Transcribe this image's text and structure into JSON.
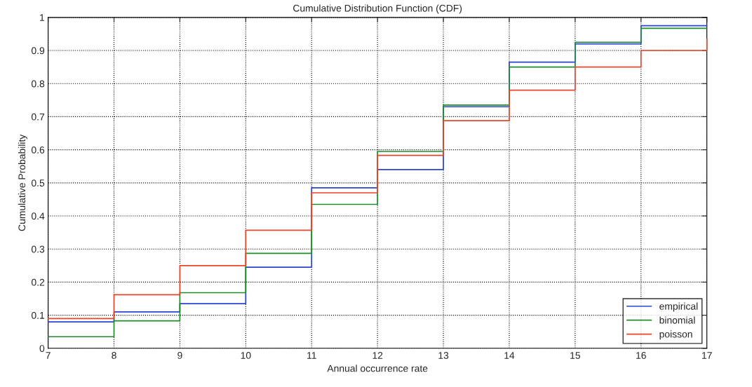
{
  "chart_data": {
    "type": "step",
    "title": "Cumulative Distribution Function (CDF)",
    "xlabel": "Annual occurrence rate",
    "ylabel": "Cumulative Probability",
    "x": [
      7,
      8,
      9,
      10,
      11,
      12,
      13,
      14,
      15,
      16,
      17
    ],
    "series": [
      {
        "name": "empirical",
        "color": "#2a45d0",
        "values": [
          0.08,
          0.11,
          0.135,
          0.245,
          0.485,
          0.54,
          0.73,
          0.865,
          0.92,
          0.975,
          0.975
        ]
      },
      {
        "name": "binomial",
        "color": "#1e8c2a",
        "values": [
          0.035,
          0.083,
          0.168,
          0.287,
          0.435,
          0.595,
          0.735,
          0.85,
          0.925,
          0.967,
          0.967
        ]
      },
      {
        "name": "poisson",
        "color": "#e8452a",
        "values": [
          0.09,
          0.162,
          0.25,
          0.357,
          0.47,
          0.583,
          0.688,
          0.78,
          0.85,
          0.9,
          0.935
        ]
      }
    ],
    "xlim": [
      7,
      17
    ],
    "ylim": [
      0,
      1
    ],
    "xticks": [
      7,
      8,
      9,
      10,
      11,
      12,
      13,
      14,
      15,
      16,
      17
    ],
    "yticks": [
      0,
      {
        "value": 0.1,
        "label": "0.1"
      },
      {
        "value": 0.2,
        "label": "0.2"
      },
      {
        "value": 0.3,
        "label": "0.3"
      },
      {
        "value": 0.4,
        "label": "0.4"
      },
      {
        "value": 0.5,
        "label": "0.5"
      },
      {
        "value": 0.6,
        "label": "0.6"
      },
      {
        "value": 0.7,
        "label": "0.7"
      },
      {
        "value": 0.8,
        "label": "0.8"
      },
      {
        "value": 0.9,
        "label": "0.9"
      },
      1
    ],
    "grid": true,
    "legend": "bottom right",
    "line_style": "solid"
  }
}
